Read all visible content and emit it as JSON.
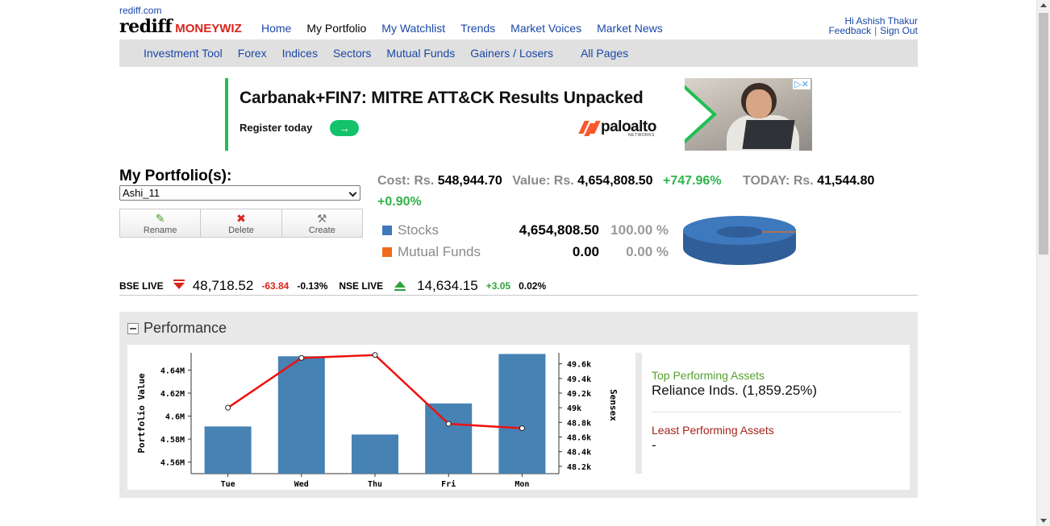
{
  "header": {
    "site_url": "rediff.com",
    "logo_main": "rediff",
    "logo_sub": "MONEYWIZ",
    "nav": [
      "Home",
      "My Portfolio",
      "My Watchlist",
      "Trends",
      "Market Voices",
      "Market News"
    ],
    "greeting": "Hi",
    "user_name": "Ashish Thakur",
    "feedback": "Feedback",
    "sep": "|",
    "signout": "Sign Out"
  },
  "subnav": [
    "Investment Tool",
    "Forex",
    "Indices",
    "Sectors",
    "Mutual Funds",
    "Gainers / Losers",
    "All Pages"
  ],
  "ad": {
    "headline": "Carbanak+FIN7: MITRE ATT&CK Results Unpacked",
    "cta": "Register today",
    "arrow": "→",
    "brand": "paloalto",
    "brand_sub": "NETWORKS",
    "adchoices": "▷✕"
  },
  "portfolio": {
    "title": "My Portfolio(s):",
    "selected": "Ashi_11",
    "buttons": [
      "Rename",
      "Delete",
      "Create"
    ],
    "cost_label": "Cost: Rs.",
    "cost": "548,944.70",
    "value_label": "Value: Rs.",
    "value": "4,654,808.50",
    "gain_pct": "+747.96%",
    "today_label": "TODAY: Rs.",
    "today": "41,544.80",
    "today_pct": "+0.90%",
    "allocation": [
      {
        "name": "Stocks",
        "amount": "4,654,808.50",
        "share": "100.00 %",
        "color": "#3e78bd"
      },
      {
        "name": "Mutual Funds",
        "amount": "0.00",
        "share": "0.00 %",
        "color": "#ef6c1a"
      }
    ]
  },
  "ticker": {
    "bse_label": "BSE LIVE",
    "bse_value": "48,718.52",
    "bse_change": "-63.84",
    "bse_pct": "-0.13%",
    "nse_label": "NSE LIVE",
    "nse_value": "14,634.15",
    "nse_change": "+3.05",
    "nse_pct": "0.02%"
  },
  "performance": {
    "title": "Performance",
    "top_label": "Top Performing Assets",
    "top_value": "Reliance Inds. (1,859.25%)",
    "least_label": "Least Performing Assets",
    "least_value": "-"
  },
  "chart_data": {
    "type": "bar",
    "categories": [
      "Tue",
      "Wed",
      "Thu",
      "Fri",
      "Mon"
    ],
    "series": [
      {
        "values": [
          4.591,
          4.652,
          4.584,
          4.611,
          4.654
        ],
        "axis": "left"
      },
      {
        "values": [
          49.0,
          49.68,
          49.72,
          48.78,
          48.72
        ],
        "axis": "right"
      }
    ],
    "ylabel": "Portfolio Value",
    "y2label": "Sensex",
    "ylim": [
      4.55,
      4.655
    ],
    "y2lim": [
      48.1,
      49.75
    ],
    "yticks": [
      {
        "v": 4.64,
        "label": "4.64M"
      },
      {
        "v": 4.62,
        "label": "4.62M"
      },
      {
        "v": 4.6,
        "label": "4.6M"
      },
      {
        "v": 4.58,
        "label": "4.58M"
      },
      {
        "v": 4.56,
        "label": "4.56M"
      }
    ],
    "y2ticks": [
      {
        "v": 49.6,
        "label": "49.6k"
      },
      {
        "v": 49.4,
        "label": "49.4k"
      },
      {
        "v": 49.2,
        "label": "49.2k"
      },
      {
        "v": 49.0,
        "label": "49k"
      },
      {
        "v": 48.8,
        "label": "48.8k"
      },
      {
        "v": 48.6,
        "label": "48.6k"
      },
      {
        "v": 48.4,
        "label": "48.4k"
      },
      {
        "v": 48.2,
        "label": "48.2k"
      }
    ],
    "bar_color": "#4682b4",
    "line_color": "#ee1111"
  }
}
